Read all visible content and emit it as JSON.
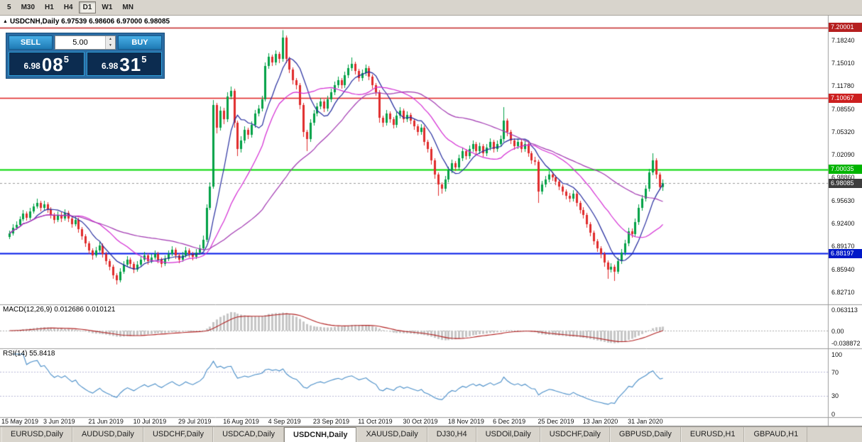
{
  "toolbar": {
    "timeframes": [
      "5",
      "M30",
      "H1",
      "H4",
      "D1",
      "W1",
      "MN"
    ],
    "active": "D1"
  },
  "chart": {
    "title": "USDCNH,Daily 6.97539 6.98606 6.97000 6.98085",
    "symbol": "USDCNH,Daily",
    "open": "6.97539",
    "high": "6.98606",
    "low": "6.97000",
    "close": "6.98085",
    "close_badge": "6.98085"
  },
  "one_click": {
    "sell_label": "SELL",
    "buy_label": "BUY",
    "volume": "5.00",
    "sell_price_prefix": "6.98",
    "sell_price_big": "08",
    "sell_price_sup": "5",
    "buy_price_prefix": "6.98",
    "buy_price_big": "31",
    "buy_price_sup": "5"
  },
  "price_axis": {
    "labels": [
      "7.18240",
      "7.15010",
      "7.11780",
      "7.08550",
      "7.05320",
      "7.02090",
      "6.98860",
      "6.95630",
      "6.92400",
      "6.89170",
      "6.85940",
      "6.82710"
    ]
  },
  "indicators": {
    "macd_label": "MACD(12,26,9) 0.012686 0.010121",
    "rsi_label": "RSI(14) 55.8418",
    "macd_axis": [
      "0.063113",
      "0.00",
      "-0.038872"
    ],
    "rsi_axis": [
      "100",
      "70",
      "30",
      "0"
    ]
  },
  "tabs": {
    "items": [
      "EURUSD,Daily",
      "AUDUSD,Daily",
      "USDCHF,Daily",
      "USDCAD,Daily",
      "USDCNH,Daily",
      "XAUUSD,Daily",
      "DJ30,H4",
      "USDOil,Daily",
      "USDCHF,Daily",
      "GBPUSD,Daily",
      "EURUSD,H1",
      "GBPAUD,H1"
    ],
    "active": "USDCNH,Daily"
  },
  "colors": {
    "candle_up": "#00a145",
    "candle_down": "#e02b2b",
    "macd_histogram": "#c6c6c6",
    "macd_signal": "#b22222",
    "rsi_line": "#4b8fc9",
    "rsi_levels": "#b9b9d9",
    "current_badge": "#3d3d3d"
  },
  "chart_data": {
    "type": "candlestick",
    "symbol": "USDCNH",
    "timeframe": "Daily",
    "y_range": [
      6.814,
      7.215
    ],
    "first_open": 6.905,
    "opens_equal_previous_close": true,
    "closes": [
      6.91,
      6.918,
      6.922,
      6.93,
      6.938,
      6.932,
      6.941,
      6.948,
      6.953,
      6.946,
      6.951,
      6.944,
      6.936,
      6.929,
      6.936,
      6.931,
      6.939,
      6.931,
      6.923,
      6.929,
      6.916,
      6.906,
      6.896,
      6.886,
      6.879,
      6.886,
      6.893,
      6.881,
      6.871,
      6.863,
      6.851,
      6.844,
      6.856,
      6.866,
      6.873,
      6.867,
      6.859,
      6.866,
      6.873,
      6.879,
      6.871,
      6.876,
      6.881,
      6.873,
      6.867,
      6.874,
      6.881,
      6.887,
      6.879,
      6.873,
      6.879,
      6.886,
      6.881,
      6.877,
      6.883,
      6.889,
      6.901,
      6.946,
      6.976,
      7.091,
      7.059,
      7.083,
      7.071,
      7.103,
      7.111,
      7.066,
      7.029,
      7.041,
      7.056,
      7.049,
      7.063,
      7.079,
      7.086,
      7.099,
      7.146,
      7.159,
      7.151,
      7.163,
      7.156,
      7.186,
      7.156,
      7.141,
      7.126,
      7.119,
      7.091,
      7.053,
      7.043,
      7.066,
      7.079,
      7.089,
      7.096,
      7.086,
      7.099,
      7.109,
      7.119,
      7.126,
      7.119,
      7.133,
      7.143,
      7.149,
      7.139,
      7.129,
      7.136,
      7.143,
      7.131,
      7.119,
      7.109,
      7.073,
      7.066,
      7.079,
      7.071,
      7.063,
      7.076,
      7.083,
      7.071,
      7.077,
      7.069,
      7.061,
      7.053,
      7.059,
      7.039,
      7.029,
      7.013,
      6.993,
      6.979,
      6.973,
      6.986,
      6.999,
      7.009,
      7.003,
      7.016,
      7.026,
      7.019,
      7.029,
      7.036,
      7.026,
      7.033,
      7.023,
      7.031,
      7.039,
      7.029,
      7.036,
      7.043,
      7.069,
      7.053,
      7.041,
      7.033,
      7.039,
      7.029,
      7.036,
      7.023,
      7.013,
      7.011,
      6.969,
      6.979,
      6.986,
      6.993,
      6.989,
      6.983,
      6.976,
      6.969,
      6.963,
      6.959,
      6.966,
      6.953,
      6.943,
      6.936,
      6.923,
      6.911,
      6.899,
      6.889,
      6.881,
      6.869,
      6.859,
      6.863,
      6.856,
      6.871,
      6.883,
      6.896,
      6.913,
      6.909,
      6.926,
      6.946,
      6.959,
      6.973,
      6.996,
      7.013,
      6.993,
      6.97539,
      6.98085
    ],
    "highs": [
      6.914,
      6.923,
      6.927,
      6.934,
      6.943,
      6.941,
      6.946,
      6.952,
      6.959,
      6.956,
      6.956,
      6.954,
      6.947,
      6.939,
      6.941,
      6.94,
      6.944,
      6.942,
      6.934,
      6.934,
      6.932,
      6.919,
      6.909,
      6.899,
      6.889,
      6.891,
      6.898,
      6.896,
      6.884,
      6.874,
      6.866,
      6.854,
      6.861,
      6.871,
      6.878,
      6.876,
      6.87,
      6.871,
      6.878,
      6.884,
      6.882,
      6.881,
      6.886,
      6.884,
      6.876,
      6.879,
      6.886,
      6.892,
      6.89,
      6.882,
      6.884,
      6.891,
      6.889,
      6.884,
      6.888,
      6.894,
      6.907,
      6.951,
      6.982,
      7.098,
      7.094,
      7.089,
      7.087,
      7.109,
      7.117,
      7.114,
      7.069,
      7.047,
      7.061,
      7.059,
      7.068,
      7.084,
      7.091,
      7.104,
      7.151,
      7.164,
      7.162,
      7.168,
      7.166,
      7.1965,
      7.189,
      7.159,
      7.144,
      7.129,
      7.122,
      7.094,
      7.056,
      7.071,
      7.084,
      7.094,
      7.101,
      7.099,
      7.104,
      7.114,
      7.124,
      7.131,
      7.129,
      7.138,
      7.148,
      7.158,
      7.152,
      7.142,
      7.141,
      7.148,
      7.146,
      7.134,
      7.122,
      7.112,
      7.076,
      7.084,
      7.082,
      7.074,
      7.081,
      7.088,
      7.086,
      7.082,
      7.08,
      7.072,
      7.064,
      7.064,
      7.062,
      7.042,
      7.032,
      7.016,
      6.996,
      6.982,
      6.991,
      7.004,
      7.014,
      7.012,
      7.021,
      7.031,
      7.029,
      7.034,
      7.041,
      7.039,
      7.038,
      7.036,
      7.036,
      7.044,
      7.042,
      7.041,
      7.048,
      7.088,
      7.072,
      7.056,
      7.044,
      7.044,
      7.042,
      7.041,
      7.039,
      7.026,
      7.018,
      7.014,
      6.984,
      6.991,
      6.998,
      6.997,
      6.992,
      6.986,
      6.979,
      6.972,
      6.967,
      6.971,
      6.969,
      6.956,
      6.947,
      6.939,
      6.926,
      6.914,
      6.902,
      6.892,
      6.884,
      6.872,
      6.868,
      6.866,
      6.876,
      6.888,
      6.901,
      6.918,
      6.917,
      6.931,
      6.951,
      6.964,
      6.978,
      7.001,
      7.023,
      7.016,
      6.996,
      6.98606
    ],
    "lows": [
      6.902,
      6.907,
      6.915,
      6.919,
      6.927,
      6.928,
      6.929,
      6.938,
      6.945,
      6.941,
      6.943,
      6.939,
      6.931,
      6.924,
      6.926,
      6.926,
      6.928,
      6.926,
      6.918,
      6.92,
      6.911,
      6.901,
      6.891,
      6.881,
      6.873,
      6.876,
      6.883,
      6.876,
      6.866,
      6.858,
      6.846,
      6.838,
      6.841,
      6.853,
      6.863,
      6.862,
      6.854,
      6.856,
      6.863,
      6.87,
      6.866,
      6.868,
      6.873,
      6.868,
      6.862,
      6.864,
      6.871,
      6.878,
      6.874,
      6.868,
      6.87,
      6.876,
      6.876,
      6.872,
      6.874,
      6.88,
      6.886,
      6.898,
      6.943,
      6.973,
      7.051,
      7.055,
      7.064,
      7.067,
      7.099,
      7.059,
      7.019,
      7.024,
      7.037,
      7.043,
      7.045,
      7.059,
      7.075,
      7.082,
      7.096,
      7.142,
      7.146,
      7.147,
      7.15,
      7.152,
      7.15,
      7.136,
      7.12,
      7.113,
      7.085,
      7.046,
      7.026,
      7.039,
      7.062,
      7.075,
      7.085,
      7.081,
      7.082,
      7.095,
      7.105,
      7.115,
      7.114,
      7.115,
      7.129,
      7.139,
      7.134,
      7.124,
      7.125,
      7.132,
      7.126,
      7.114,
      7.104,
      7.066,
      7.06,
      7.062,
      7.066,
      7.058,
      7.059,
      7.072,
      7.066,
      7.067,
      7.064,
      7.056,
      7.048,
      7.049,
      7.034,
      7.024,
      7.007,
      6.987,
      6.963,
      6.966,
      6.969,
      6.982,
      6.995,
      6.998,
      6.999,
      7.012,
      7.014,
      7.015,
      7.025,
      7.021,
      7.022,
      7.018,
      7.019,
      7.027,
      7.024,
      7.025,
      7.032,
      7.039,
      7.047,
      7.036,
      7.028,
      7.029,
      7.024,
      7.025,
      7.018,
      7.008,
      7.006,
      6.953,
      6.965,
      6.975,
      6.982,
      6.984,
      6.978,
      6.971,
      6.964,
      6.958,
      6.954,
      6.955,
      6.948,
      6.938,
      6.931,
      6.918,
      6.906,
      6.894,
      6.884,
      6.875,
      6.863,
      6.846,
      6.855,
      6.843,
      6.853,
      6.867,
      6.879,
      6.892,
      6.904,
      6.905,
      6.922,
      6.942,
      6.955,
      6.969,
      6.992,
      6.987,
      6.971,
      6.97
    ],
    "x_labels": [
      {
        "text": "15 May 2019",
        "i": 2
      },
      {
        "text": "3 Jun 2019",
        "i": 15
      },
      {
        "text": "21 Jun 2019",
        "i": 28
      },
      {
        "text": "10 Jul 2019",
        "i": 41
      },
      {
        "text": "29 Jul 2019",
        "i": 54
      },
      {
        "text": "16 Aug 2019",
        "i": 67
      },
      {
        "text": "4 Sep 2019",
        "i": 80
      },
      {
        "text": "23 Sep 2019",
        "i": 93
      },
      {
        "text": "11 Oct 2019",
        "i": 106
      },
      {
        "text": "30 Oct 2019",
        "i": 119
      },
      {
        "text": "18 Nov 2019",
        "i": 132
      },
      {
        "text": "6 Dec 2019",
        "i": 145
      },
      {
        "text": "25 Dec 2019",
        "i": 158
      },
      {
        "text": "13 Jan 2020",
        "i": 171
      },
      {
        "text": "31 Jan 2020",
        "i": 184
      }
    ],
    "moving_averages": [
      {
        "period": 8,
        "color": "#232a9e"
      },
      {
        "period": 20,
        "color": "#d42ad4"
      },
      {
        "period": 45,
        "color": "#a238b2"
      }
    ],
    "hlines": [
      {
        "label": "7.20001",
        "value": 7.20001,
        "color": "#c22525",
        "badge": "#b51f1f",
        "width": 1.4
      },
      {
        "label": "7.10067",
        "value": 7.10067,
        "color": "#e02020",
        "badge": "#cc1f1f",
        "width": 1.6
      },
      {
        "label": "7.00035",
        "value": 7.00035,
        "color": "#00d800",
        "badge": "#00b400",
        "width": 2
      },
      {
        "label": "6.88197",
        "value": 6.88197,
        "color": "#0018e8",
        "badge": "#0018c8",
        "width": 2
      }
    ],
    "current_price": 6.98085,
    "macd": {
      "fast": 12,
      "slow": 26,
      "signal": 9,
      "current_main": 0.012686,
      "current_signal": 0.010121
    },
    "rsi": {
      "period": 14,
      "current": 55.8418,
      "levels": [
        70,
        30
      ]
    }
  }
}
